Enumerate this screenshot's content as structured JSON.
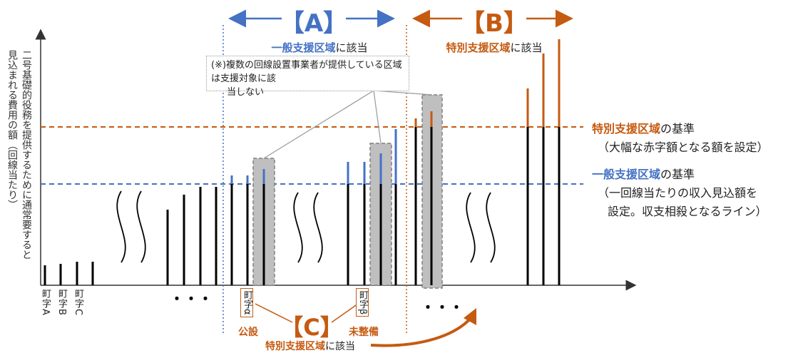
{
  "labels": {
    "A": "【A】",
    "B": "【B】",
    "C": "【C】",
    "general_area_prefix": "一般支援区域",
    "general_area_suffix": "に該当",
    "special_area_prefix": "特別支援区域",
    "special_area_suffix": "に該当",
    "note_line1": "(※)複数の回線設置事業者が提供している区域は支援対象に該",
    "note_line2": "当しない",
    "special_standard_prefix": "特別支援区域",
    "special_standard_suffix": "の基準",
    "special_standard_desc": "（大幅な赤字額となる額を設定）",
    "general_standard_prefix": "一般支援区域",
    "general_standard_suffix": "の基準",
    "general_standard_desc1": "（一回線当たりの収入見込額を",
    "general_standard_desc2": "設定。収支相殺となるライン）",
    "y_axis_col1": "二号基礎的役務を提供するために通常要すると",
    "y_axis_col2": "見込まれる費用の額（回線当たり）",
    "town_a": "町字A",
    "town_b": "町字B",
    "town_c": "町字C",
    "town_alpha": "町字α",
    "town_beta": "町字β",
    "public": "公設",
    "unmaintained": "未整備",
    "c_special_prefix": "特別支援区域",
    "c_special_suffix": "に該当",
    "dots_1": "・・・",
    "dots_2": "・・・"
  },
  "colors": {
    "blue": "#4472c4",
    "orange": "#c55a11",
    "black": "#000000",
    "gray_fill": "#bfbfbf"
  }
}
